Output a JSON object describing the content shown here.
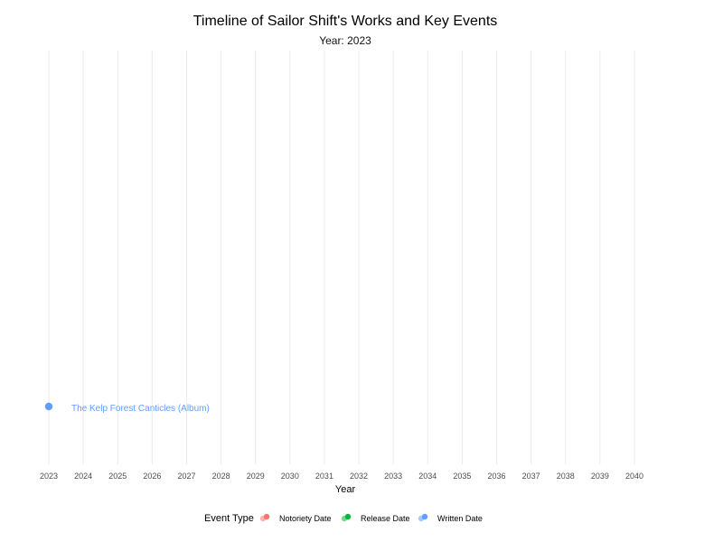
{
  "chart_data": {
    "type": "scatter",
    "title": "Timeline of Sailor Shift's Works and Key Events",
    "subtitle": "Year: 2023",
    "xlabel": "Year",
    "ylabel": "",
    "xlim": [
      2023,
      2040
    ],
    "x_ticks": [
      "2023",
      "2024",
      "2025",
      "2026",
      "2027",
      "2028",
      "2029",
      "2030",
      "2031",
      "2032",
      "2033",
      "2034",
      "2035",
      "2036",
      "2037",
      "2038",
      "2039",
      "2040"
    ],
    "grid": "vertical-major",
    "points": [
      {
        "x": 2023,
        "label": "The Kelp Forest Canticles (Album)",
        "event_type": "Written Date"
      }
    ],
    "legend": {
      "title": "Event Type",
      "position": "bottom",
      "entries": [
        {
          "label": "Notoriety Date",
          "color": "#F8766D"
        },
        {
          "label": "Release Date",
          "color": "#00BA38"
        },
        {
          "label": "Written Date",
          "color": "#619CFF"
        }
      ]
    }
  }
}
